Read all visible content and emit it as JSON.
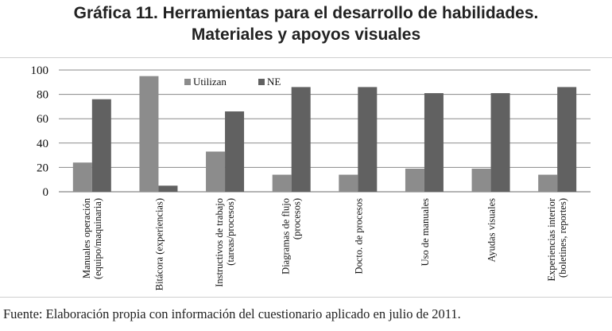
{
  "chart_data": {
    "type": "bar",
    "title": "Gráfica 11. Herramientas para el desarrollo de habilidades.",
    "subtitle": "Materiales y apoyos visuales",
    "xlabel": "",
    "ylabel": "",
    "ylim": [
      0,
      100
    ],
    "yticks": [
      0,
      20,
      40,
      60,
      80,
      100
    ],
    "grid": true,
    "legend_position": "top-center",
    "categories": [
      [
        "Manuales operación",
        "(equipo/maquinaria)"
      ],
      [
        "Bitácora (experiencias)"
      ],
      [
        "Instructivos de trabajo",
        "(tareas/procesos)"
      ],
      [
        "Diagramas de flujo",
        "(procesos)"
      ],
      [
        "Docto. de procesos"
      ],
      [
        "Uso de manuales"
      ],
      [
        "Ayudas visuales"
      ],
      [
        "Experiencias interior",
        "(boletines, reportes)"
      ]
    ],
    "series": [
      {
        "name": "Utilizan",
        "color": "#8c8c8c",
        "values": [
          24,
          95,
          33,
          14,
          14,
          19,
          19,
          14
        ]
      },
      {
        "name": "NE",
        "color": "#616161",
        "values": [
          76,
          5,
          66,
          86,
          86,
          81,
          81,
          86
        ]
      }
    ]
  },
  "footer": "Fuente: Elaboración propia con información del cuestionario aplicado en julio de 2011."
}
